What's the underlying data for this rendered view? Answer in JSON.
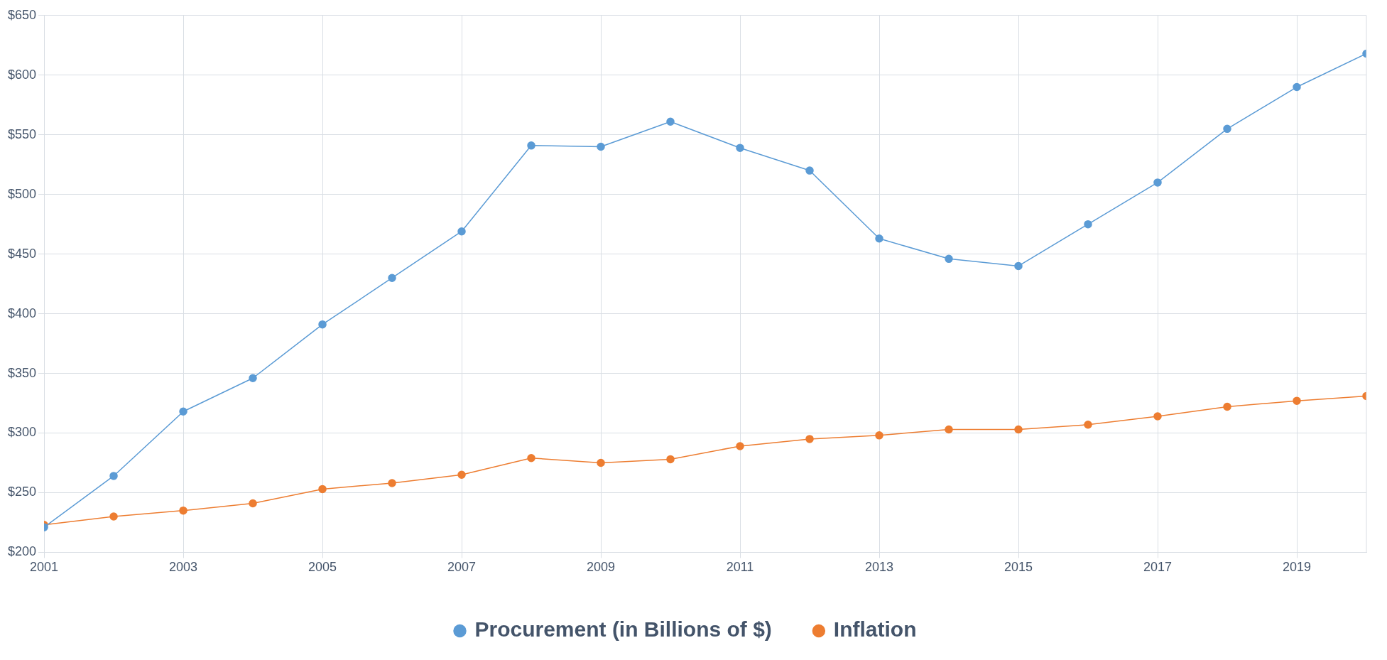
{
  "chart_data": {
    "type": "line",
    "x": [
      2001,
      2002,
      2003,
      2004,
      2005,
      2006,
      2007,
      2008,
      2009,
      2010,
      2011,
      2012,
      2013,
      2014,
      2015,
      2016,
      2017,
      2018,
      2019,
      2020
    ],
    "series": [
      {
        "name": "Procurement (in Billions of $)",
        "color": "#5b9bd5",
        "values": [
          221,
          264,
          318,
          346,
          391,
          430,
          469,
          541,
          540,
          561,
          539,
          520,
          463,
          446,
          440,
          475,
          510,
          555,
          590,
          618
        ]
      },
      {
        "name": "Inflation",
        "color": "#ed7d31",
        "values": [
          223,
          230,
          235,
          241,
          253,
          258,
          265,
          279,
          275,
          278,
          289,
          295,
          298,
          303,
          303,
          307,
          314,
          322,
          327,
          331
        ]
      }
    ],
    "xlim": [
      2001,
      2020
    ],
    "xticks": [
      2001,
      2003,
      2005,
      2007,
      2009,
      2011,
      2013,
      2015,
      2017,
      2019
    ],
    "ylim": [
      200,
      650
    ],
    "yticks": [
      {
        "value": 200,
        "label": "$200"
      },
      {
        "value": 250,
        "label": "$250"
      },
      {
        "value": 300,
        "label": "$300"
      },
      {
        "value": 350,
        "label": "$350"
      },
      {
        "value": 400,
        "label": "$400"
      },
      {
        "value": 450,
        "label": "$450"
      },
      {
        "value": 500,
        "label": "$500"
      },
      {
        "value": 550,
        "label": "$550"
      },
      {
        "value": 600,
        "label": "$600"
      },
      {
        "value": 650,
        "label": "$650"
      }
    ],
    "grid": true,
    "legend": "bottom",
    "marker": "circle",
    "line_style": "solid"
  }
}
